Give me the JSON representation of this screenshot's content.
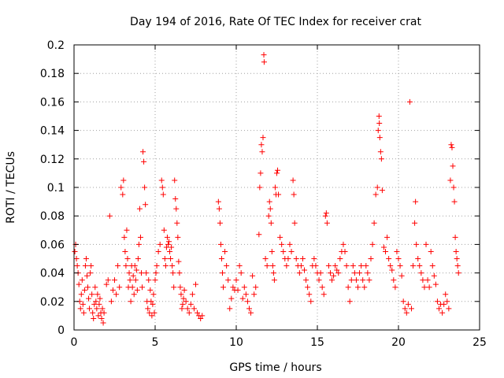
{
  "chart_data": {
    "type": "scatter",
    "title": "Day 194 of 2016, Rate Of TEC Index for receiver crat",
    "xlabel": "GPS time / hours",
    "ylabel": "ROTI / TECUs",
    "xlim": [
      0,
      25
    ],
    "ylim": [
      0,
      0.2
    ],
    "x_ticks": [
      0,
      5,
      10,
      15,
      20,
      25
    ],
    "y_ticks": [
      0,
      0.02,
      0.04,
      0.06,
      0.08,
      0.1,
      0.12,
      0.14,
      0.16,
      0.18,
      0.2
    ],
    "x_tick_labels": [
      "0",
      "5",
      "10",
      "15",
      "20",
      "25"
    ],
    "y_tick_labels": [
      "0",
      "0.02",
      "0.04",
      "0.06",
      "0.08",
      "0.1",
      "0.12",
      "0.14",
      "0.16",
      "0.18",
      "0.2"
    ],
    "grid": true,
    "legend": "none",
    "marker": "+",
    "marker_color": "#ff0000",
    "series": [
      {
        "points": [
          [
            0.05,
            0.055
          ],
          [
            0.1,
            0.06
          ],
          [
            0.15,
            0.05
          ],
          [
            0.2,
            0.045
          ],
          [
            0.25,
            0.04
          ],
          [
            0.3,
            0.032
          ],
          [
            0.35,
            0.02
          ],
          [
            0.4,
            0.015
          ],
          [
            0.45,
            0.025
          ],
          [
            0.5,
            0.035
          ],
          [
            0.55,
            0.018
          ],
          [
            0.6,
            0.012
          ],
          [
            0.65,
            0.028
          ],
          [
            0.7,
            0.045
          ],
          [
            0.75,
            0.05
          ],
          [
            0.8,
            0.038
          ],
          [
            0.85,
            0.03
          ],
          [
            0.9,
            0.022
          ],
          [
            0.95,
            0.015
          ],
          [
            1.0,
            0.04
          ],
          [
            1.05,
            0.045
          ],
          [
            1.1,
            0.025
          ],
          [
            1.15,
            0.012
          ],
          [
            1.2,
            0.008
          ],
          [
            1.25,
            0.018
          ],
          [
            1.3,
            0.03
          ],
          [
            1.35,
            0.02
          ],
          [
            1.4,
            0.015
          ],
          [
            1.45,
            0.025
          ],
          [
            1.5,
            0.01
          ],
          [
            1.55,
            0.018
          ],
          [
            1.6,
            0.022
          ],
          [
            1.65,
            0.012
          ],
          [
            1.7,
            0.008
          ],
          [
            1.75,
            0.015
          ],
          [
            1.8,
            0.005
          ],
          [
            1.85,
            0.012
          ],
          [
            2.0,
            0.032
          ],
          [
            2.1,
            0.035
          ],
          [
            2.2,
            0.08
          ],
          [
            2.3,
            0.02
          ],
          [
            2.4,
            0.028
          ],
          [
            2.5,
            0.035
          ],
          [
            2.6,
            0.025
          ],
          [
            2.7,
            0.045
          ],
          [
            2.8,
            0.03
          ],
          [
            2.9,
            0.1
          ],
          [
            3.0,
            0.095
          ],
          [
            3.05,
            0.105
          ],
          [
            3.1,
            0.065
          ],
          [
            3.15,
            0.055
          ],
          [
            3.2,
            0.045
          ],
          [
            3.25,
            0.07
          ],
          [
            3.3,
            0.05
          ],
          [
            3.35,
            0.03
          ],
          [
            3.4,
            0.04
          ],
          [
            3.45,
            0.035
          ],
          [
            3.5,
            0.02
          ],
          [
            3.55,
            0.045
          ],
          [
            3.6,
            0.03
          ],
          [
            3.65,
            0.038
          ],
          [
            3.7,
            0.025
          ],
          [
            3.75,
            0.045
          ],
          [
            3.8,
            0.035
          ],
          [
            3.85,
            0.042
          ],
          [
            3.9,
            0.028
          ],
          [
            3.95,
            0.05
          ],
          [
            4.0,
            0.06
          ],
          [
            4.05,
            0.085
          ],
          [
            4.1,
            0.065
          ],
          [
            4.15,
            0.04
          ],
          [
            4.2,
            0.03
          ],
          [
            4.25,
            0.125
          ],
          [
            4.3,
            0.118
          ],
          [
            4.35,
            0.1
          ],
          [
            4.4,
            0.088
          ],
          [
            4.45,
            0.04
          ],
          [
            4.5,
            0.02
          ],
          [
            4.55,
            0.015
          ],
          [
            4.6,
            0.035
          ],
          [
            4.65,
            0.012
          ],
          [
            4.7,
            0.028
          ],
          [
            4.75,
            0.02
          ],
          [
            4.8,
            0.01
          ],
          [
            4.85,
            0.018
          ],
          [
            4.9,
            0.025
          ],
          [
            4.95,
            0.012
          ],
          [
            5.0,
            0.035
          ],
          [
            5.05,
            0.04
          ],
          [
            5.1,
            0.045
          ],
          [
            5.2,
            0.055
          ],
          [
            5.3,
            0.06
          ],
          [
            5.4,
            0.105
          ],
          [
            5.45,
            0.1
          ],
          [
            5.5,
            0.095
          ],
          [
            5.55,
            0.07
          ],
          [
            5.6,
            0.05
          ],
          [
            5.65,
            0.045
          ],
          [
            5.7,
            0.058
          ],
          [
            5.75,
            0.065
          ],
          [
            5.8,
            0.06
          ],
          [
            5.85,
            0.062
          ],
          [
            5.9,
            0.055
          ],
          [
            5.95,
            0.05
          ],
          [
            6.0,
            0.058
          ],
          [
            6.05,
            0.045
          ],
          [
            6.1,
            0.04
          ],
          [
            6.15,
            0.03
          ],
          [
            6.2,
            0.105
          ],
          [
            6.25,
            0.092
          ],
          [
            6.3,
            0.085
          ],
          [
            6.35,
            0.075
          ],
          [
            6.4,
            0.065
          ],
          [
            6.45,
            0.048
          ],
          [
            6.5,
            0.04
          ],
          [
            6.55,
            0.03
          ],
          [
            6.6,
            0.025
          ],
          [
            6.65,
            0.015
          ],
          [
            6.7,
            0.018
          ],
          [
            6.75,
            0.022
          ],
          [
            6.8,
            0.028
          ],
          [
            6.9,
            0.02
          ],
          [
            7.0,
            0.015
          ],
          [
            7.1,
            0.012
          ],
          [
            7.2,
            0.018
          ],
          [
            7.3,
            0.025
          ],
          [
            7.4,
            0.015
          ],
          [
            7.5,
            0.032
          ],
          [
            7.6,
            0.012
          ],
          [
            7.7,
            0.01
          ],
          [
            7.8,
            0.008
          ],
          [
            7.9,
            0.01
          ],
          [
            8.9,
            0.09
          ],
          [
            8.95,
            0.085
          ],
          [
            9.0,
            0.075
          ],
          [
            9.05,
            0.06
          ],
          [
            9.1,
            0.05
          ],
          [
            9.15,
            0.04
          ],
          [
            9.2,
            0.03
          ],
          [
            9.3,
            0.055
          ],
          [
            9.4,
            0.045
          ],
          [
            9.5,
            0.035
          ],
          [
            9.6,
            0.015
          ],
          [
            9.7,
            0.022
          ],
          [
            9.8,
            0.03
          ],
          [
            9.9,
            0.028
          ],
          [
            10.0,
            0.035
          ],
          [
            10.1,
            0.028
          ],
          [
            10.2,
            0.045
          ],
          [
            10.3,
            0.04
          ],
          [
            10.4,
            0.022
          ],
          [
            10.5,
            0.03
          ],
          [
            10.6,
            0.025
          ],
          [
            10.7,
            0.02
          ],
          [
            10.8,
            0.015
          ],
          [
            10.9,
            0.012
          ],
          [
            11.0,
            0.038
          ],
          [
            11.1,
            0.025
          ],
          [
            11.2,
            0.03
          ],
          [
            11.4,
            0.067
          ],
          [
            11.45,
            0.1
          ],
          [
            11.5,
            0.11
          ],
          [
            11.55,
            0.13
          ],
          [
            11.6,
            0.125
          ],
          [
            11.65,
            0.135
          ],
          [
            11.7,
            0.193
          ],
          [
            11.72,
            0.188
          ],
          [
            11.8,
            0.05
          ],
          [
            11.9,
            0.045
          ],
          [
            12.0,
            0.08
          ],
          [
            12.05,
            0.09
          ],
          [
            12.1,
            0.085
          ],
          [
            12.15,
            0.075
          ],
          [
            12.2,
            0.055
          ],
          [
            12.25,
            0.045
          ],
          [
            12.3,
            0.04
          ],
          [
            12.35,
            0.035
          ],
          [
            12.4,
            0.1
          ],
          [
            12.45,
            0.095
          ],
          [
            12.5,
            0.11
          ],
          [
            12.55,
            0.112
          ],
          [
            12.6,
            0.095
          ],
          [
            12.7,
            0.065
          ],
          [
            12.8,
            0.06
          ],
          [
            12.9,
            0.055
          ],
          [
            13.0,
            0.05
          ],
          [
            13.1,
            0.045
          ],
          [
            13.2,
            0.05
          ],
          [
            13.3,
            0.06
          ],
          [
            13.4,
            0.055
          ],
          [
            13.5,
            0.105
          ],
          [
            13.55,
            0.095
          ],
          [
            13.6,
            0.075
          ],
          [
            13.7,
            0.05
          ],
          [
            13.8,
            0.045
          ],
          [
            13.9,
            0.04
          ],
          [
            14.0,
            0.045
          ],
          [
            14.1,
            0.05
          ],
          [
            14.2,
            0.042
          ],
          [
            14.3,
            0.035
          ],
          [
            14.4,
            0.03
          ],
          [
            14.5,
            0.025
          ],
          [
            14.6,
            0.02
          ],
          [
            14.7,
            0.045
          ],
          [
            14.8,
            0.05
          ],
          [
            14.9,
            0.045
          ],
          [
            15.0,
            0.04
          ],
          [
            15.1,
            0.035
          ],
          [
            15.2,
            0.04
          ],
          [
            15.3,
            0.03
          ],
          [
            15.4,
            0.025
          ],
          [
            15.5,
            0.08
          ],
          [
            15.55,
            0.082
          ],
          [
            15.6,
            0.075
          ],
          [
            15.7,
            0.045
          ],
          [
            15.8,
            0.04
          ],
          [
            15.9,
            0.035
          ],
          [
            16.0,
            0.038
          ],
          [
            16.1,
            0.045
          ],
          [
            16.2,
            0.042
          ],
          [
            16.3,
            0.04
          ],
          [
            16.4,
            0.05
          ],
          [
            16.5,
            0.055
          ],
          [
            16.6,
            0.06
          ],
          [
            16.7,
            0.055
          ],
          [
            16.8,
            0.045
          ],
          [
            16.9,
            0.03
          ],
          [
            17.0,
            0.02
          ],
          [
            17.1,
            0.035
          ],
          [
            17.2,
            0.045
          ],
          [
            17.3,
            0.04
          ],
          [
            17.4,
            0.035
          ],
          [
            17.5,
            0.03
          ],
          [
            17.6,
            0.04
          ],
          [
            17.7,
            0.045
          ],
          [
            17.8,
            0.035
          ],
          [
            17.9,
            0.03
          ],
          [
            18.0,
            0.045
          ],
          [
            18.1,
            0.04
          ],
          [
            18.2,
            0.035
          ],
          [
            18.3,
            0.05
          ],
          [
            18.4,
            0.06
          ],
          [
            18.5,
            0.075
          ],
          [
            18.6,
            0.095
          ],
          [
            18.7,
            0.1
          ],
          [
            18.75,
            0.14
          ],
          [
            18.8,
            0.15
          ],
          [
            18.82,
            0.145
          ],
          [
            18.85,
            0.135
          ],
          [
            18.9,
            0.125
          ],
          [
            18.95,
            0.12
          ],
          [
            19.0,
            0.098
          ],
          [
            19.1,
            0.058
          ],
          [
            19.2,
            0.055
          ],
          [
            19.3,
            0.065
          ],
          [
            19.4,
            0.05
          ],
          [
            19.5,
            0.045
          ],
          [
            19.6,
            0.042
          ],
          [
            19.7,
            0.035
          ],
          [
            19.8,
            0.03
          ],
          [
            19.9,
            0.055
          ],
          [
            20.0,
            0.05
          ],
          [
            20.1,
            0.045
          ],
          [
            20.2,
            0.038
          ],
          [
            20.3,
            0.02
          ],
          [
            20.4,
            0.015
          ],
          [
            20.5,
            0.012
          ],
          [
            20.6,
            0.018
          ],
          [
            20.7,
            0.16
          ],
          [
            20.8,
            0.015
          ],
          [
            20.9,
            0.045
          ],
          [
            21.0,
            0.075
          ],
          [
            21.05,
            0.09
          ],
          [
            21.1,
            0.06
          ],
          [
            21.2,
            0.05
          ],
          [
            21.3,
            0.045
          ],
          [
            21.4,
            0.04
          ],
          [
            21.5,
            0.035
          ],
          [
            21.6,
            0.03
          ],
          [
            21.7,
            0.06
          ],
          [
            21.8,
            0.035
          ],
          [
            21.9,
            0.03
          ],
          [
            22.0,
            0.055
          ],
          [
            22.1,
            0.045
          ],
          [
            22.2,
            0.038
          ],
          [
            22.3,
            0.032
          ],
          [
            22.4,
            0.02
          ],
          [
            22.5,
            0.015
          ],
          [
            22.6,
            0.018
          ],
          [
            22.7,
            0.012
          ],
          [
            22.8,
            0.018
          ],
          [
            22.9,
            0.025
          ],
          [
            23.0,
            0.02
          ],
          [
            23.1,
            0.015
          ],
          [
            23.2,
            0.105
          ],
          [
            23.25,
            0.13
          ],
          [
            23.3,
            0.128
          ],
          [
            23.35,
            0.115
          ],
          [
            23.4,
            0.1
          ],
          [
            23.45,
            0.09
          ],
          [
            23.5,
            0.065
          ],
          [
            23.55,
            0.055
          ],
          [
            23.6,
            0.05
          ],
          [
            23.65,
            0.045
          ],
          [
            23.7,
            0.04
          ]
        ]
      }
    ]
  }
}
